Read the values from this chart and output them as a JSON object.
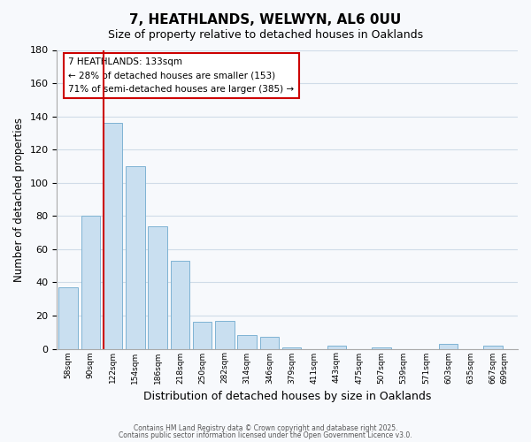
{
  "title": "7, HEATHLANDS, WELWYN, AL6 0UU",
  "subtitle": "Size of property relative to detached houses in Oaklands",
  "xlabel": "Distribution of detached houses by size in Oaklands",
  "ylabel": "Number of detached properties",
  "bar_values": [
    37,
    80,
    136,
    110,
    74,
    53,
    16,
    17,
    8,
    7,
    1,
    0,
    2,
    0,
    1,
    0,
    0,
    3,
    0,
    2
  ],
  "bin_labels": [
    "58sqm",
    "90sqm",
    "122sqm",
    "154sqm",
    "186sqm",
    "218sqm",
    "250sqm",
    "282sqm",
    "314sqm",
    "346sqm",
    "379sqm",
    "411sqm",
    "443sqm",
    "475sqm",
    "507sqm",
    "539sqm",
    "571sqm",
    "603sqm",
    "635sqm",
    "667sqm",
    "699sqm"
  ],
  "bar_color": "#c9dff0",
  "bar_edge_color": "#7fb3d3",
  "vline_x_index": 2,
  "vline_color": "#cc0000",
  "annotation_line1": "7 HEATHLANDS: 133sqm",
  "annotation_line2": "← 28% of detached houses are smaller (153)",
  "annotation_line3": "71% of semi-detached houses are larger (385) →",
  "ylim": [
    0,
    180
  ],
  "yticks": [
    0,
    20,
    40,
    60,
    80,
    100,
    120,
    140,
    160,
    180
  ],
  "footer_line1": "Contains HM Land Registry data © Crown copyright and database right 2025.",
  "footer_line2": "Contains public sector information licensed under the Open Government Licence v3.0.",
  "bg_color": "#f7f9fc",
  "grid_color": "#d0dce8"
}
